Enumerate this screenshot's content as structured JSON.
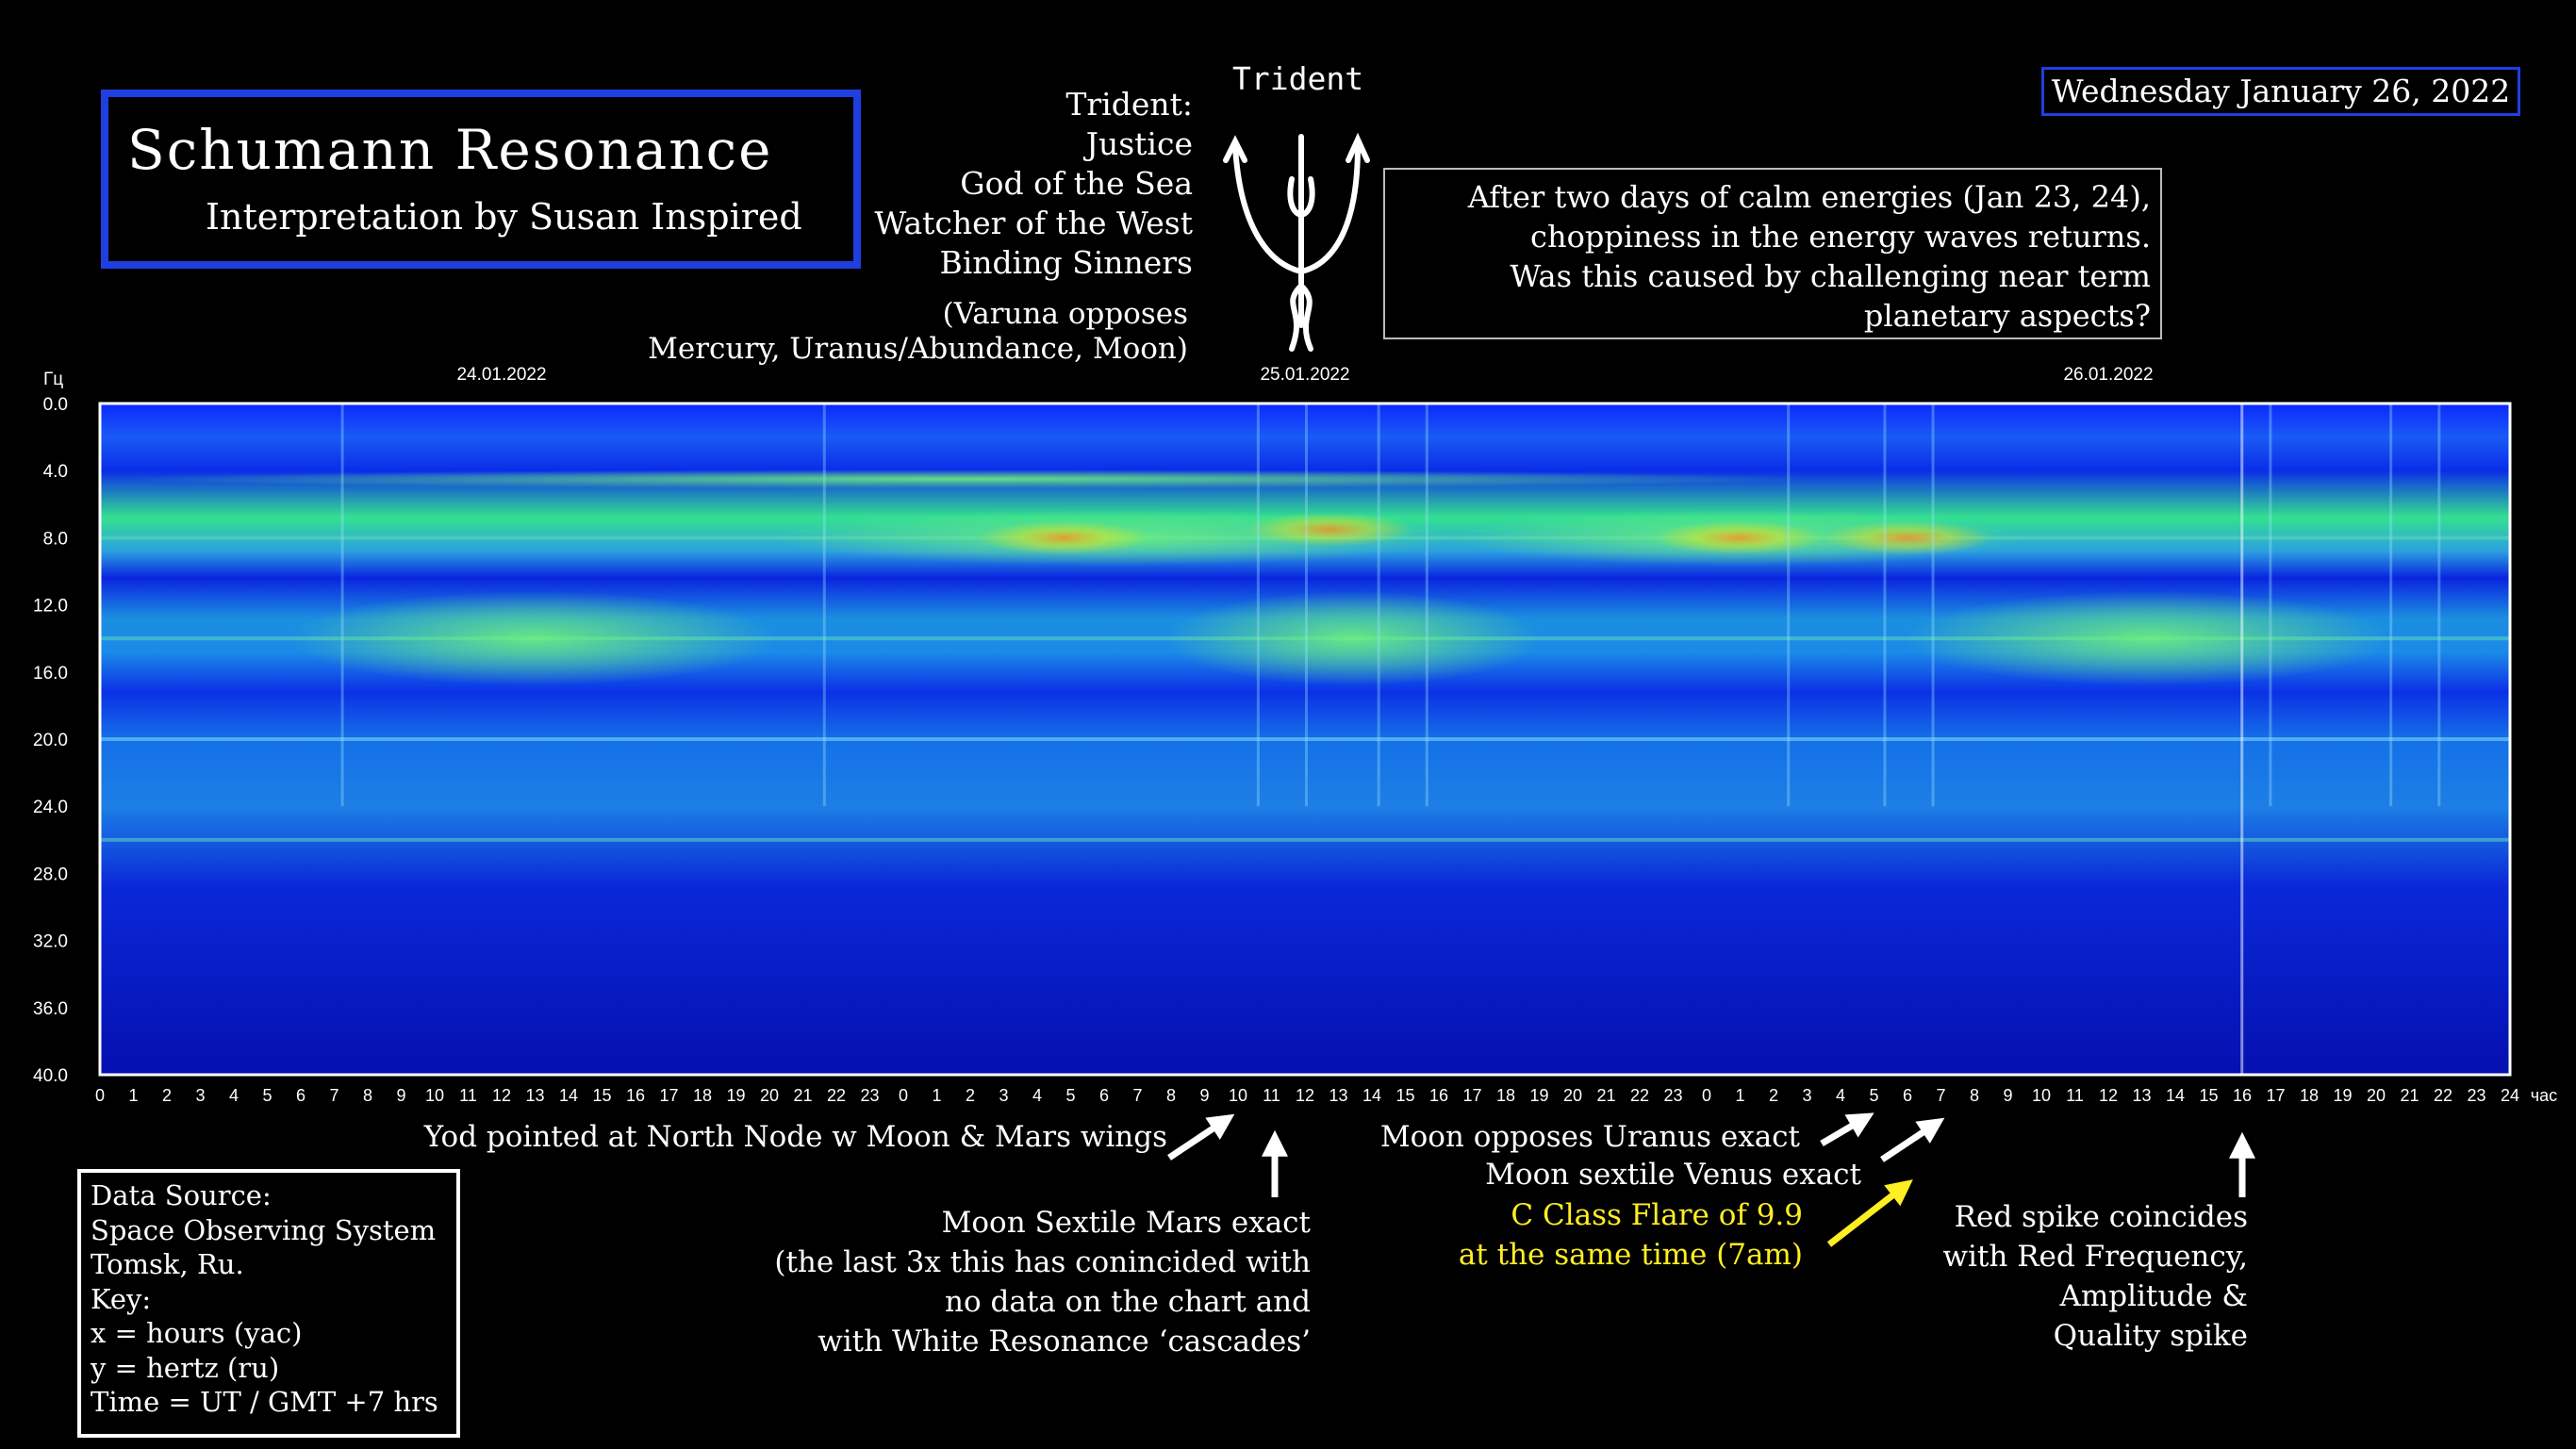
{
  "title": {
    "main": "Schumann Resonance",
    "sub": "Interpretation by Susan Inspired"
  },
  "trident": {
    "label": "Trident",
    "lines": [
      "Trident:",
      "Justice",
      "God of the Sea",
      "Watcher of the West",
      "Binding Sinners"
    ],
    "varuna": [
      "(Varuna opposes",
      "Mercury, Uranus/Abundance, Moon)"
    ]
  },
  "date": "Wednesday January 26, 2022",
  "note": [
    "After two days of calm energies (Jan 23, 24),",
    "choppiness in the energy waves returns.",
    "Was this caused by challenging near term",
    "planetary aspects?"
  ],
  "chart_data": {
    "type": "heatmap",
    "y_unit_label": "Гц",
    "x_unit_label": "час",
    "date_labels": [
      "24.01.2022",
      "25.01.2022",
      "26.01.2022"
    ],
    "ylim": [
      0,
      40
    ],
    "y_ticks": [
      "0.0",
      "4.0",
      "8.0",
      "12.0",
      "16.0",
      "20.0",
      "24.0",
      "28.0",
      "32.0",
      "36.0",
      "40.0"
    ],
    "x_ticks": [
      "0",
      "1",
      "2",
      "3",
      "4",
      "5",
      "6",
      "7",
      "8",
      "9",
      "10",
      "11",
      "12",
      "13",
      "14",
      "15",
      "16",
      "17",
      "18",
      "19",
      "20",
      "21",
      "22",
      "23",
      "0",
      "1",
      "2",
      "3",
      "4",
      "5",
      "6",
      "7",
      "8",
      "9",
      "10",
      "11",
      "12",
      "13",
      "14",
      "15",
      "16",
      "17",
      "18",
      "19",
      "20",
      "21",
      "22",
      "23",
      "0",
      "1",
      "2",
      "3",
      "4",
      "5",
      "6",
      "7",
      "8",
      "9",
      "10",
      "11",
      "12",
      "13",
      "14",
      "15",
      "16",
      "17",
      "18",
      "19",
      "20",
      "21",
      "22",
      "23",
      "24"
    ],
    "bands_hz": [
      8,
      14,
      20,
      26
    ]
  },
  "annotations": {
    "yod": "Yod pointed at North Node w Moon & Mars wings",
    "moon_mars": [
      "Moon Sextile Mars exact",
      "(the last 3x this has conincided with",
      "no data on the chart and",
      "with White Resonance ‘cascades’"
    ],
    "moon_uranus": "Moon opposes Uranus exact",
    "moon_venus": "Moon sextile Venus exact",
    "flare": [
      "C Class Flare of 9.9",
      "at the same time (7am)"
    ],
    "red_spike": [
      "Red spike coincides",
      "with Red Frequency,",
      "Amplitude &",
      "Quality spike"
    ]
  },
  "source": [
    "Data Source:",
    "Space Observing System",
    "Tomsk, Ru.",
    "Key:",
    "x = hours (yac)",
    "y = hertz (ru)",
    "Time = UT / GMT +7 hrs"
  ],
  "colors": {
    "frame": "#1f3fe0",
    "flare_text": "#ffee22",
    "spectrogram_base": "#0a1fd0"
  }
}
